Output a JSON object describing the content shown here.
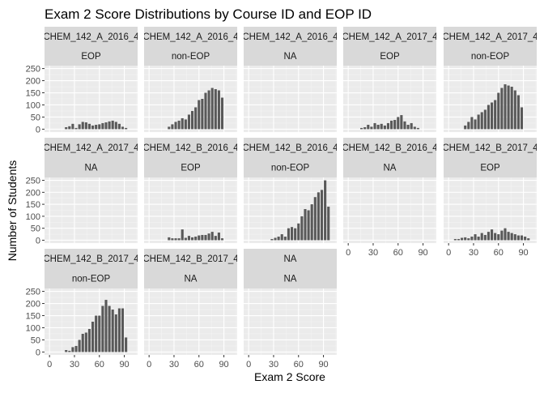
{
  "chart_data": {
    "type": "bar",
    "title": "Exam 2 Score Distributions by Course ID and EOP ID",
    "xlabel": "Exam 2 Score",
    "ylabel": "Number of Students",
    "xlim": [
      -6,
      106
    ],
    "ylim": [
      -12,
      262
    ],
    "x_ticks": [
      0,
      30,
      60,
      90
    ],
    "y_ticks": [
      0,
      50,
      100,
      150,
      200,
      250
    ],
    "bin_width": 4,
    "grid": true,
    "bar_color": "#595959",
    "panel_bg": "#ebebeb",
    "strip_bg": "#d9d9d9",
    "strip_text_color": "#1a1a1a",
    "axis_text_color": "#4d4d4d",
    "facets": [
      {
        "strip": [
          "CHEM_142_A_2016_4",
          "EOP"
        ],
        "x": [
          20,
          24,
          28,
          32,
          36,
          40,
          44,
          48,
          52,
          56,
          60,
          64,
          68,
          72,
          76,
          80,
          84,
          88,
          92,
          96,
          100
        ],
        "y": [
          8,
          12,
          22,
          5,
          20,
          30,
          28,
          22,
          15,
          18,
          20,
          25,
          28,
          32,
          35,
          30,
          22,
          10,
          5,
          0,
          0
        ]
      },
      {
        "strip": [
          "CHEM_142_A_2016_4",
          "non-EOP"
        ],
        "x": [
          24,
          28,
          32,
          36,
          40,
          44,
          48,
          52,
          56,
          60,
          64,
          68,
          72,
          76,
          80,
          84,
          88,
          92,
          96,
          100
        ],
        "y": [
          10,
          20,
          30,
          35,
          45,
          40,
          60,
          75,
          90,
          120,
          125,
          150,
          160,
          170,
          165,
          160,
          130,
          0,
          0,
          0
        ]
      },
      {
        "strip": [
          "CHEM_142_A_2016_4",
          "NA"
        ],
        "x": [],
        "y": []
      },
      {
        "strip": [
          "CHEM_142_A_2017_4",
          "EOP"
        ],
        "x": [
          16,
          20,
          24,
          28,
          32,
          36,
          40,
          44,
          48,
          52,
          56,
          60,
          64,
          68,
          72,
          76,
          80,
          84
        ],
        "y": [
          5,
          8,
          18,
          10,
          25,
          18,
          22,
          15,
          25,
          35,
          38,
          50,
          58,
          32,
          18,
          25,
          10,
          5
        ]
      },
      {
        "strip": [
          "CHEM_142_A_2017_4",
          "non-EOP"
        ],
        "x": [
          20,
          24,
          28,
          32,
          36,
          40,
          44,
          48,
          52,
          56,
          60,
          64,
          68,
          72,
          76,
          80,
          84,
          88,
          92,
          96,
          100
        ],
        "y": [
          15,
          30,
          50,
          40,
          60,
          70,
          80,
          100,
          110,
          120,
          150,
          170,
          185,
          180,
          175,
          160,
          140,
          90,
          0,
          0,
          0
        ]
      },
      {
        "strip": [
          "CHEM_142_A_2017_4",
          "NA"
        ],
        "x": [],
        "y": []
      },
      {
        "strip": [
          "CHEM_142_B_2016_4",
          "EOP"
        ],
        "x": [
          24,
          28,
          32,
          36,
          40,
          44,
          48,
          52,
          56,
          60,
          64,
          68,
          72,
          76,
          80,
          84,
          88,
          92
        ],
        "y": [
          12,
          8,
          8,
          8,
          45,
          10,
          18,
          12,
          15,
          20,
          22,
          22,
          28,
          35,
          18,
          32,
          8,
          0
        ]
      },
      {
        "strip": [
          "CHEM_142_B_2016_4",
          "non-EOP"
        ],
        "x": [
          28,
          32,
          36,
          40,
          44,
          48,
          52,
          56,
          60,
          64,
          68,
          72,
          76,
          80,
          84,
          88,
          92,
          96,
          100
        ],
        "y": [
          5,
          10,
          15,
          25,
          15,
          50,
          55,
          50,
          70,
          100,
          130,
          125,
          150,
          180,
          200,
          210,
          250,
          140,
          0
        ]
      },
      {
        "strip": [
          "CHEM_142_B_2016_4",
          "NA"
        ],
        "x": [],
        "y": []
      },
      {
        "strip": [
          "CHEM_142_B_2017_4",
          "EOP"
        ],
        "x": [
          8,
          12,
          16,
          20,
          24,
          28,
          32,
          36,
          40,
          44,
          48,
          52,
          56,
          60,
          64,
          68,
          72,
          76,
          80,
          84,
          88,
          92,
          96,
          100
        ],
        "y": [
          5,
          5,
          10,
          12,
          8,
          15,
          25,
          15,
          30,
          22,
          35,
          45,
          30,
          25,
          40,
          50,
          35,
          30,
          25,
          20,
          20,
          15,
          8,
          0
        ]
      },
      {
        "strip": [
          "CHEM_142_B_2017_4",
          "non-EOP"
        ],
        "x": [
          20,
          24,
          28,
          32,
          36,
          40,
          44,
          48,
          52,
          56,
          60,
          64,
          68,
          72,
          76,
          80,
          84,
          88,
          92,
          96,
          100
        ],
        "y": [
          8,
          5,
          20,
          25,
          50,
          75,
          80,
          95,
          125,
          150,
          150,
          190,
          215,
          190,
          175,
          155,
          180,
          180,
          60,
          0,
          0
        ]
      },
      {
        "strip": [
          "CHEM_142_B_2017_4",
          "NA"
        ],
        "x": [],
        "y": []
      },
      {
        "strip": [
          "NA",
          "NA"
        ],
        "x": [],
        "y": []
      }
    ]
  }
}
